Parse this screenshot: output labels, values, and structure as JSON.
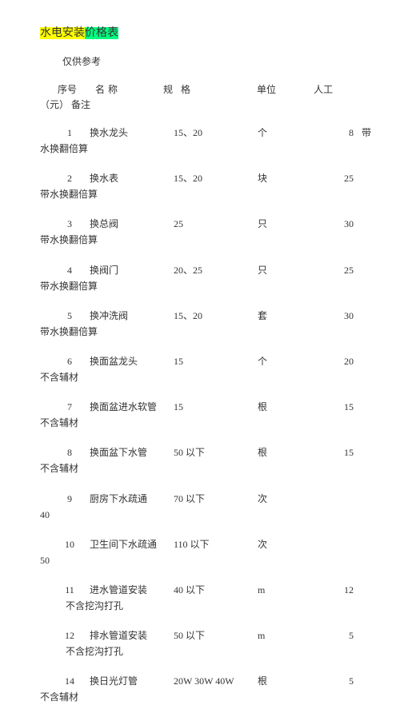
{
  "title": {
    "p1": "水电安装",
    "p2": "价格表"
  },
  "subtitle": "仅供参考",
  "header": {
    "seq": "序号",
    "name": "名称",
    "spec": "规格",
    "unit": "单位",
    "price": "人工",
    "line2": "（元） 备注"
  },
  "rows": [
    {
      "seq": "1",
      "name": "换水龙头",
      "spec": "15、20",
      "unit": "个",
      "price": "8",
      "note_side": "带",
      "note": "水换翻倍算"
    },
    {
      "seq": "2",
      "name": "换水表",
      "spec": "15、20",
      "unit": "块",
      "price": "25",
      "note_side": "",
      "note": "带水换翻倍算"
    },
    {
      "seq": "3",
      "name": "换总阀",
      "spec": "25",
      "unit": "只",
      "price": "30",
      "note_side": "",
      "note": "带水换翻倍算"
    },
    {
      "seq": "4",
      "name": "换阀门",
      "spec": "20、25",
      "unit": "只",
      "price": "25",
      "note_side": "",
      "note": "带水换翻倍算"
    },
    {
      "seq": "5",
      "name": "换冲洗阀",
      "spec": "15、20",
      "unit": "套",
      "price": "30",
      "note_side": "",
      "note": "带水换翻倍算"
    },
    {
      "seq": "6",
      "name": "换面盆龙头",
      "spec": "15",
      "unit": "个",
      "price": "20",
      "note_side": "",
      "note": "不含辅材"
    },
    {
      "seq": "7",
      "name": "换面盆进水软管",
      "spec": "15",
      "unit": "根",
      "price": "15",
      "note_side": "",
      "note": "不含辅材"
    },
    {
      "seq": "8",
      "name": "换面盆下水管",
      "spec": "50 以下",
      "unit": "根",
      "price": "15",
      "note_side": "",
      "note": "不含辅材"
    },
    {
      "seq": "9",
      "name": "厨房下水疏通",
      "spec": "70 以下",
      "unit": "次",
      "price": "",
      "note_side": "",
      "note": "40"
    },
    {
      "seq": "10",
      "name": "卫生间下水疏通",
      "spec": "110 以下",
      "unit": "次",
      "price": "",
      "note_side": "",
      "note": "50"
    },
    {
      "seq": "11",
      "name": "进水管道安装",
      "spec": "40 以下",
      "unit": "m",
      "price": "12",
      "note_side": "",
      "note": "不含挖沟打孔",
      "indent": true
    },
    {
      "seq": "12",
      "name": "排水管道安装",
      "spec": "50 以下",
      "unit": "m",
      "price": "5",
      "note_side": "",
      "note": "不含挖沟打孔",
      "indent": true
    },
    {
      "seq": "14",
      "name": "换日光灯管",
      "spec": "20W 30W 40W",
      "unit": "根",
      "price": "5",
      "note_side": "",
      "note": "不含辅材"
    }
  ]
}
